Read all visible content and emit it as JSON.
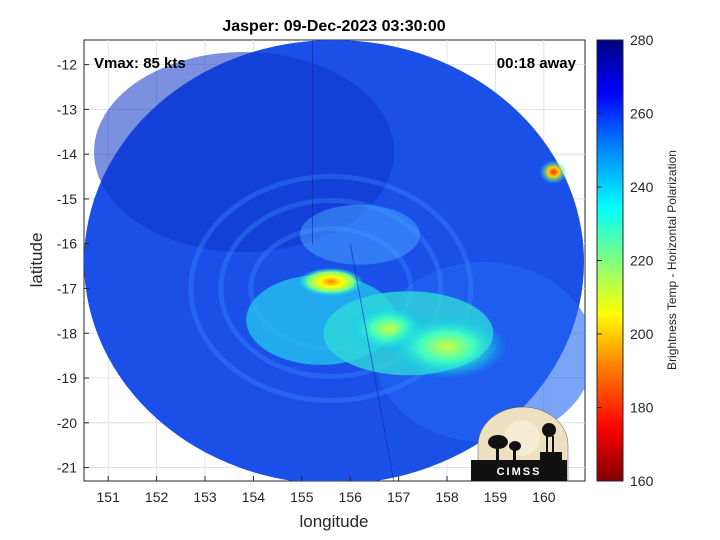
{
  "chart_data": {
    "type": "heatmap",
    "title": "Jasper: 09-Dec-2023 03:30:00",
    "xlabel": "longitude",
    "ylabel": "latitude",
    "xlim": [
      150.5,
      160.85
    ],
    "ylim": [
      -21.3,
      -11.45
    ],
    "x_ticks": [
      "151",
      "152",
      "153",
      "154",
      "155",
      "156",
      "157",
      "158",
      "159",
      "160"
    ],
    "y_ticks": [
      "-12",
      "-13",
      "-14",
      "-15",
      "-16",
      "-17",
      "-18",
      "-19",
      "-20",
      "-21"
    ],
    "grid": true,
    "annotations": {
      "vmax": "Vmax: 85 kts",
      "time_away": "00:18 away"
    },
    "colorbar": {
      "label": "Brightness Temp - Horizontal Polarization",
      "range": [
        160,
        280
      ],
      "ticks": [
        "160",
        "180",
        "200",
        "220",
        "240",
        "260",
        "280"
      ],
      "colormap": "jet"
    },
    "storm_center": {
      "lon": 155.6,
      "lat": -17.0
    },
    "features": [
      {
        "name": "eyewall-cold-core",
        "lon": 155.6,
        "lat": -16.85,
        "value": 195
      },
      {
        "name": "rainband-south",
        "lon": 156.8,
        "lat": -17.9,
        "value": 225
      },
      {
        "name": "rainband-east",
        "lon": 158.0,
        "lat": -18.3,
        "value": 222
      },
      {
        "name": "convection-northeast",
        "lon": 160.2,
        "lat": -14.4,
        "value": 180
      }
    ],
    "logo_text": "CIMSS"
  }
}
